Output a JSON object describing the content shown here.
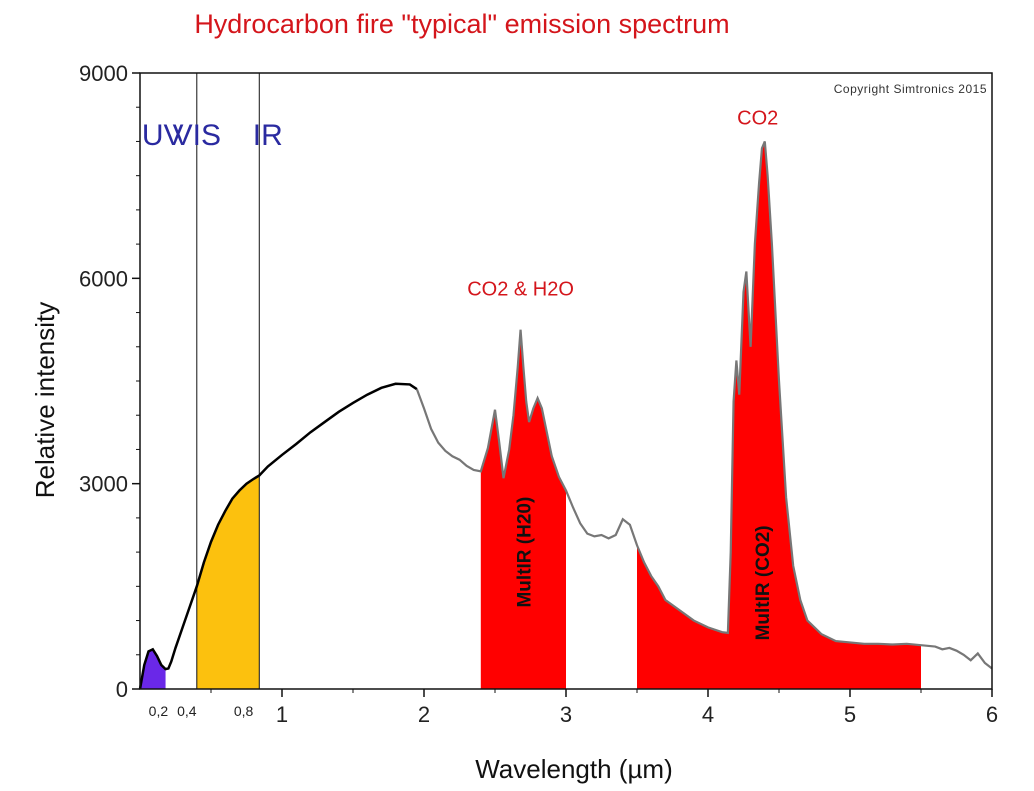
{
  "chart_data": {
    "type": "area",
    "title": "Hydrocarbon fire \"typical\" emission spectrum",
    "xlabel": "Wavelength (µm)",
    "ylabel": "Relative intensity",
    "xlim": [
      0,
      6
    ],
    "ylim": [
      0,
      9000
    ],
    "x_ticks": [
      1,
      2,
      3,
      4,
      5,
      6
    ],
    "x_tick_labels": [
      "1",
      "2",
      "3",
      "4",
      "5",
      "6"
    ],
    "x_small_ticks": [
      0.2,
      0.4,
      0.8
    ],
    "x_small_tick_labels": [
      "0,2",
      "0,4",
      "0,8"
    ],
    "y_ticks": [
      0,
      3000,
      6000,
      9000
    ],
    "y_tick_labels": [
      "0",
      "3000",
      "6000",
      "9000"
    ],
    "grid": false,
    "copyright": "Copyright Simtronics 2015",
    "region_labels": [
      {
        "text": "UV",
        "x": 0.16
      },
      {
        "text": "VIS",
        "x": 0.4
      },
      {
        "text": "IR",
        "x": 0.9
      }
    ],
    "region_boundaries": [
      0.4,
      0.84
    ],
    "spectrum": {
      "x": [
        0.0,
        0.03,
        0.06,
        0.09,
        0.12,
        0.15,
        0.18,
        0.2,
        0.22,
        0.25,
        0.3,
        0.35,
        0.4,
        0.45,
        0.5,
        0.55,
        0.6,
        0.65,
        0.7,
        0.75,
        0.8,
        0.84,
        0.9,
        1.0,
        1.1,
        1.2,
        1.3,
        1.4,
        1.5,
        1.6,
        1.7,
        1.8,
        1.9,
        1.95,
        2.0,
        2.05,
        2.1,
        2.15,
        2.2,
        2.25,
        2.3,
        2.35,
        2.4,
        2.45,
        2.5,
        2.53,
        2.56,
        2.6,
        2.63,
        2.66,
        2.68,
        2.7,
        2.72,
        2.74,
        2.77,
        2.8,
        2.83,
        2.86,
        2.9,
        2.95,
        3.0,
        3.05,
        3.1,
        3.15,
        3.2,
        3.25,
        3.3,
        3.35,
        3.4,
        3.45,
        3.5,
        3.55,
        3.6,
        3.65,
        3.7,
        3.8,
        3.9,
        4.0,
        4.1,
        4.14,
        4.16,
        4.18,
        4.2,
        4.22,
        4.25,
        4.27,
        4.3,
        4.33,
        4.36,
        4.38,
        4.4,
        4.42,
        4.45,
        4.5,
        4.55,
        4.6,
        4.65,
        4.7,
        4.8,
        4.9,
        5.0,
        5.1,
        5.2,
        5.3,
        5.4,
        5.5,
        5.6,
        5.65,
        5.7,
        5.75,
        5.8,
        5.85,
        5.9,
        5.95,
        6.0
      ],
      "y": [
        0,
        350,
        550,
        580,
        480,
        350,
        290,
        300,
        400,
        600,
        900,
        1200,
        1500,
        1850,
        2150,
        2400,
        2600,
        2780,
        2900,
        3000,
        3070,
        3120,
        3250,
        3420,
        3580,
        3750,
        3900,
        4050,
        4180,
        4300,
        4400,
        4460,
        4450,
        4380,
        4100,
        3800,
        3600,
        3480,
        3400,
        3350,
        3260,
        3200,
        3180,
        3520,
        4080,
        3600,
        3080,
        3500,
        4000,
        4700,
        5250,
        4700,
        4200,
        3900,
        4100,
        4250,
        4100,
        3800,
        3400,
        3100,
        2900,
        2650,
        2420,
        2270,
        2230,
        2250,
        2200,
        2250,
        2480,
        2400,
        2100,
        1850,
        1650,
        1500,
        1300,
        1150,
        1000,
        900,
        830,
        820,
        2000,
        4200,
        4800,
        4300,
        5800,
        6100,
        5000,
        6500,
        7400,
        7900,
        8000,
        7500,
        6500,
        4500,
        2800,
        1800,
        1300,
        1000,
        800,
        700,
        680,
        660,
        660,
        650,
        660,
        640,
        620,
        580,
        600,
        560,
        500,
        420,
        520,
        380,
        300
      ]
    },
    "bands": [
      {
        "name": "UV",
        "x": [
          0.0,
          0.18
        ],
        "color": "#6a28e8"
      },
      {
        "name": "VIS",
        "x": [
          0.4,
          0.84
        ],
        "color": "#fcc10e"
      },
      {
        "name": "MultIR (H20)",
        "x": [
          2.4,
          3.0
        ],
        "color": "#ff0000"
      },
      {
        "name": "MultIR (CO2)",
        "x": [
          3.5,
          5.5
        ],
        "color": "#ff0000"
      }
    ],
    "annotations": [
      {
        "text": "CO2 & H2O",
        "x": 2.68,
        "y": 5750,
        "kind": "peak"
      },
      {
        "text": "CO2",
        "x": 4.35,
        "y": 8250,
        "kind": "peak"
      },
      {
        "text": "MultIR (H20)",
        "x": 2.7,
        "y": 2000,
        "kind": "band"
      },
      {
        "text": "MultIR (CO2)",
        "x": 4.38,
        "y": 1550,
        "kind": "band"
      }
    ],
    "colors": {
      "title": "#d4151b",
      "curve_left": "#000000",
      "curve_right": "#777777",
      "region_label": "#2a2aa0",
      "annotation": "#d4151b"
    }
  }
}
